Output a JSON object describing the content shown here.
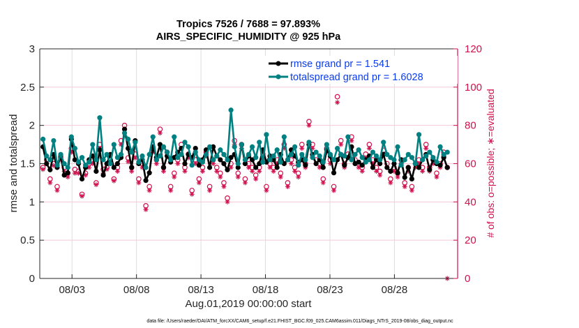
{
  "chart_data": {
    "type": "line",
    "title": [
      "Tropics 7526 / 7688 = 97.893%",
      "AIRS_SPECIFIC_HUMIDITY @ 925 hPa"
    ],
    "xlabel": "Aug.01,2019 00:00:00 start",
    "ylabel": "rmse and totalspread",
    "ylabel_right": "# of obs: o=possible; ∗=evaluated",
    "footer": "data file: /Users/raeder/DAI/ATM_forcXX/CAM6_setup/f.e21.FHIST_BGC.f09_025.CAM6assim.011/Diags_NTrS_2019-08/obs_diag_output.nc",
    "xlim_days": [
      0.5,
      32.9
    ],
    "ylim": [
      0,
      3
    ],
    "ylim_right": [
      0,
      120
    ],
    "yticks": [
      "0",
      "0.5",
      "1",
      "1.5",
      "2",
      "2.5",
      "3"
    ],
    "yticks_right": [
      "0",
      "20",
      "40",
      "60",
      "80",
      "100",
      "120"
    ],
    "xticks": [
      {
        "day": 3,
        "label": "08/03"
      },
      {
        "day": 8,
        "label": "08/08"
      },
      {
        "day": 13,
        "label": "08/13"
      },
      {
        "day": 18,
        "label": "08/18"
      },
      {
        "day": 23,
        "label": "08/23"
      },
      {
        "day": 28,
        "label": "08/28"
      }
    ],
    "grid": true,
    "legend_position": "top-right",
    "colors": {
      "rmse": "#000000",
      "totalspread": "#008080",
      "obs": "#d0104c",
      "grid": "#f5c6d4"
    },
    "series": [
      {
        "name": "rmse grand pr = 1.541",
        "key": "rmse",
        "values": [
          1.72,
          1.5,
          1.42,
          1.62,
          1.45,
          1.6,
          1.35,
          1.38,
          1.82,
          1.55,
          1.5,
          1.3,
          1.45,
          1.55,
          1.6,
          1.4,
          1.68,
          1.35,
          1.5,
          1.62,
          1.45,
          1.5,
          1.58,
          1.95,
          1.7,
          1.45,
          1.8,
          1.5,
          1.55,
          1.28,
          1.38,
          1.72,
          1.58,
          1.75,
          1.45,
          1.6,
          1.52,
          1.58,
          1.65,
          1.7,
          1.5,
          1.62,
          1.58,
          1.7,
          1.48,
          1.55,
          1.68,
          1.45,
          1.72,
          1.6,
          1.55,
          1.5,
          1.42,
          1.58,
          1.62,
          1.45,
          1.75,
          1.5,
          1.6,
          1.55,
          1.45,
          1.5,
          1.68,
          1.52,
          1.6,
          1.55,
          1.45,
          1.62,
          1.5,
          1.55,
          1.68,
          1.6,
          1.52,
          1.55,
          1.48,
          1.75,
          1.62,
          1.5,
          1.55,
          1.45,
          1.68,
          1.6,
          1.38,
          1.55,
          1.62,
          1.48,
          1.58,
          1.72,
          1.5,
          1.52,
          1.48,
          1.55,
          1.6,
          1.45,
          1.55,
          1.5,
          1.62,
          1.45,
          1.4,
          1.5,
          1.38,
          1.55,
          1.32,
          1.45,
          1.3,
          1.5,
          1.45,
          1.55,
          1.62,
          1.42,
          1.55,
          1.5,
          1.48,
          1.58,
          1.45
        ],
        "values_secondary": null
      },
      {
        "name": "totalspread grand pr = 1.6028",
        "key": "totalspread",
        "values": [
          1.82,
          1.6,
          1.55,
          1.8,
          1.48,
          1.62,
          1.5,
          1.45,
          1.85,
          1.7,
          1.52,
          1.58,
          1.48,
          1.52,
          1.75,
          1.55,
          2.1,
          1.55,
          1.62,
          1.5,
          1.75,
          1.58,
          1.62,
          1.9,
          1.82,
          1.65,
          1.78,
          1.52,
          1.6,
          1.45,
          1.62,
          1.85,
          1.55,
          1.6,
          1.72,
          1.65,
          1.55,
          1.85,
          1.58,
          1.62,
          1.78,
          1.72,
          1.48,
          1.65,
          1.55,
          1.52,
          1.62,
          1.72,
          1.55,
          1.6,
          1.68,
          1.62,
          1.55,
          2.2,
          1.72,
          1.5,
          1.75,
          1.55,
          1.62,
          1.72,
          1.58,
          1.78,
          1.52,
          1.88,
          1.55,
          1.6,
          1.68,
          1.52,
          1.85,
          1.55,
          1.62,
          1.72,
          1.48,
          1.62,
          1.55,
          1.78,
          1.58,
          1.65,
          1.6,
          1.52,
          1.75,
          1.62,
          1.55,
          1.7,
          1.62,
          1.6,
          1.85,
          1.55,
          1.62,
          1.68,
          1.58,
          1.52,
          1.55,
          1.65,
          1.6,
          1.55,
          1.78,
          1.62,
          1.58,
          1.55,
          1.72,
          1.48,
          1.55,
          1.62,
          1.58,
          1.5,
          1.88,
          1.55,
          1.6,
          1.65,
          1.58,
          1.52,
          1.72,
          1.62,
          1.65
        ]
      }
    ],
    "obs_possible": [
      58,
      62,
      52,
      60,
      48,
      63,
      58,
      55,
      68,
      57,
      56,
      44,
      55,
      60,
      62,
      50,
      70,
      57,
      58,
      62,
      52,
      58,
      72,
      80,
      63,
      58,
      65,
      52,
      60,
      38,
      48,
      68,
      62,
      78,
      58,
      66,
      48,
      55,
      62,
      70,
      58,
      65,
      46,
      62,
      52,
      58,
      66,
      48,
      62,
      58,
      55,
      50,
      42,
      60,
      72,
      55,
      70,
      52,
      60,
      58,
      54,
      58,
      65,
      48,
      60,
      58,
      62,
      55,
      70,
      50,
      62,
      58,
      55,
      70,
      60,
      82,
      70,
      62,
      60,
      52,
      68,
      62,
      48,
      95,
      72,
      60,
      65,
      74,
      62,
      60,
      58,
      65,
      70,
      62,
      58,
      56,
      67,
      60,
      52,
      58,
      55,
      62,
      50,
      58,
      48,
      60,
      62,
      58,
      70,
      58,
      62,
      55,
      60,
      66,
      58
    ],
    "obs_evaluated": [
      57,
      60,
      50,
      59,
      46,
      62,
      56,
      53,
      66,
      55,
      55,
      43,
      54,
      58,
      60,
      49,
      68,
      55,
      57,
      60,
      51,
      56,
      70,
      78,
      61,
      56,
      63,
      50,
      58,
      36,
      46,
      66,
      60,
      76,
      56,
      64,
      46,
      53,
      60,
      68,
      56,
      63,
      44,
      60,
      50,
      56,
      64,
      46,
      60,
      56,
      53,
      48,
      40,
      58,
      70,
      53,
      68,
      50,
      58,
      56,
      52,
      56,
      63,
      46,
      58,
      56,
      60,
      53,
      68,
      48,
      60,
      56,
      53,
      68,
      58,
      80,
      68,
      60,
      58,
      50,
      66,
      60,
      46,
      92,
      70,
      58,
      63,
      72,
      60,
      58,
      56,
      63,
      68,
      60,
      56,
      54,
      65,
      58,
      50,
      56,
      53,
      60,
      48,
      56,
      46,
      58,
      60,
      56,
      68,
      56,
      60,
      53,
      58,
      64,
      0
    ],
    "note": "Series arrays are approximate, generated to match the visual pattern of ~115 six-hourly samples; exact per-point values are not readable from the image."
  }
}
